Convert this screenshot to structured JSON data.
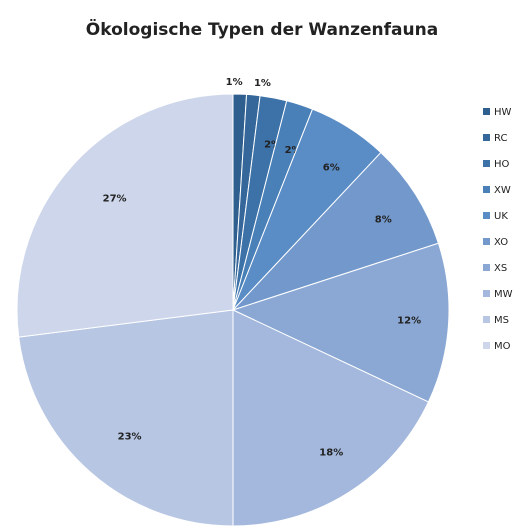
{
  "chart_data": {
    "type": "pie",
    "title": "Ökologische Typen der Wanzenfauna",
    "categories": [
      "HW",
      "RC",
      "HO",
      "XW",
      "UK",
      "XO",
      "XS",
      "MW",
      "MS",
      "MO"
    ],
    "values": [
      1,
      1,
      2,
      2,
      6,
      8,
      12,
      18,
      23,
      27
    ],
    "value_labels": [
      "1%",
      "1%",
      "2%",
      "2%",
      "6%",
      "8%",
      "12%",
      "18%",
      "23%",
      "27%"
    ],
    "colors": [
      "#2f5f8f",
      "#35679a",
      "#3d72a8",
      "#4a80b8",
      "#5a8cc6",
      "#7399cc",
      "#8ba8d4",
      "#a3b8dc",
      "#b7c6e3",
      "#cdd6ea"
    ],
    "legend": "right"
  }
}
